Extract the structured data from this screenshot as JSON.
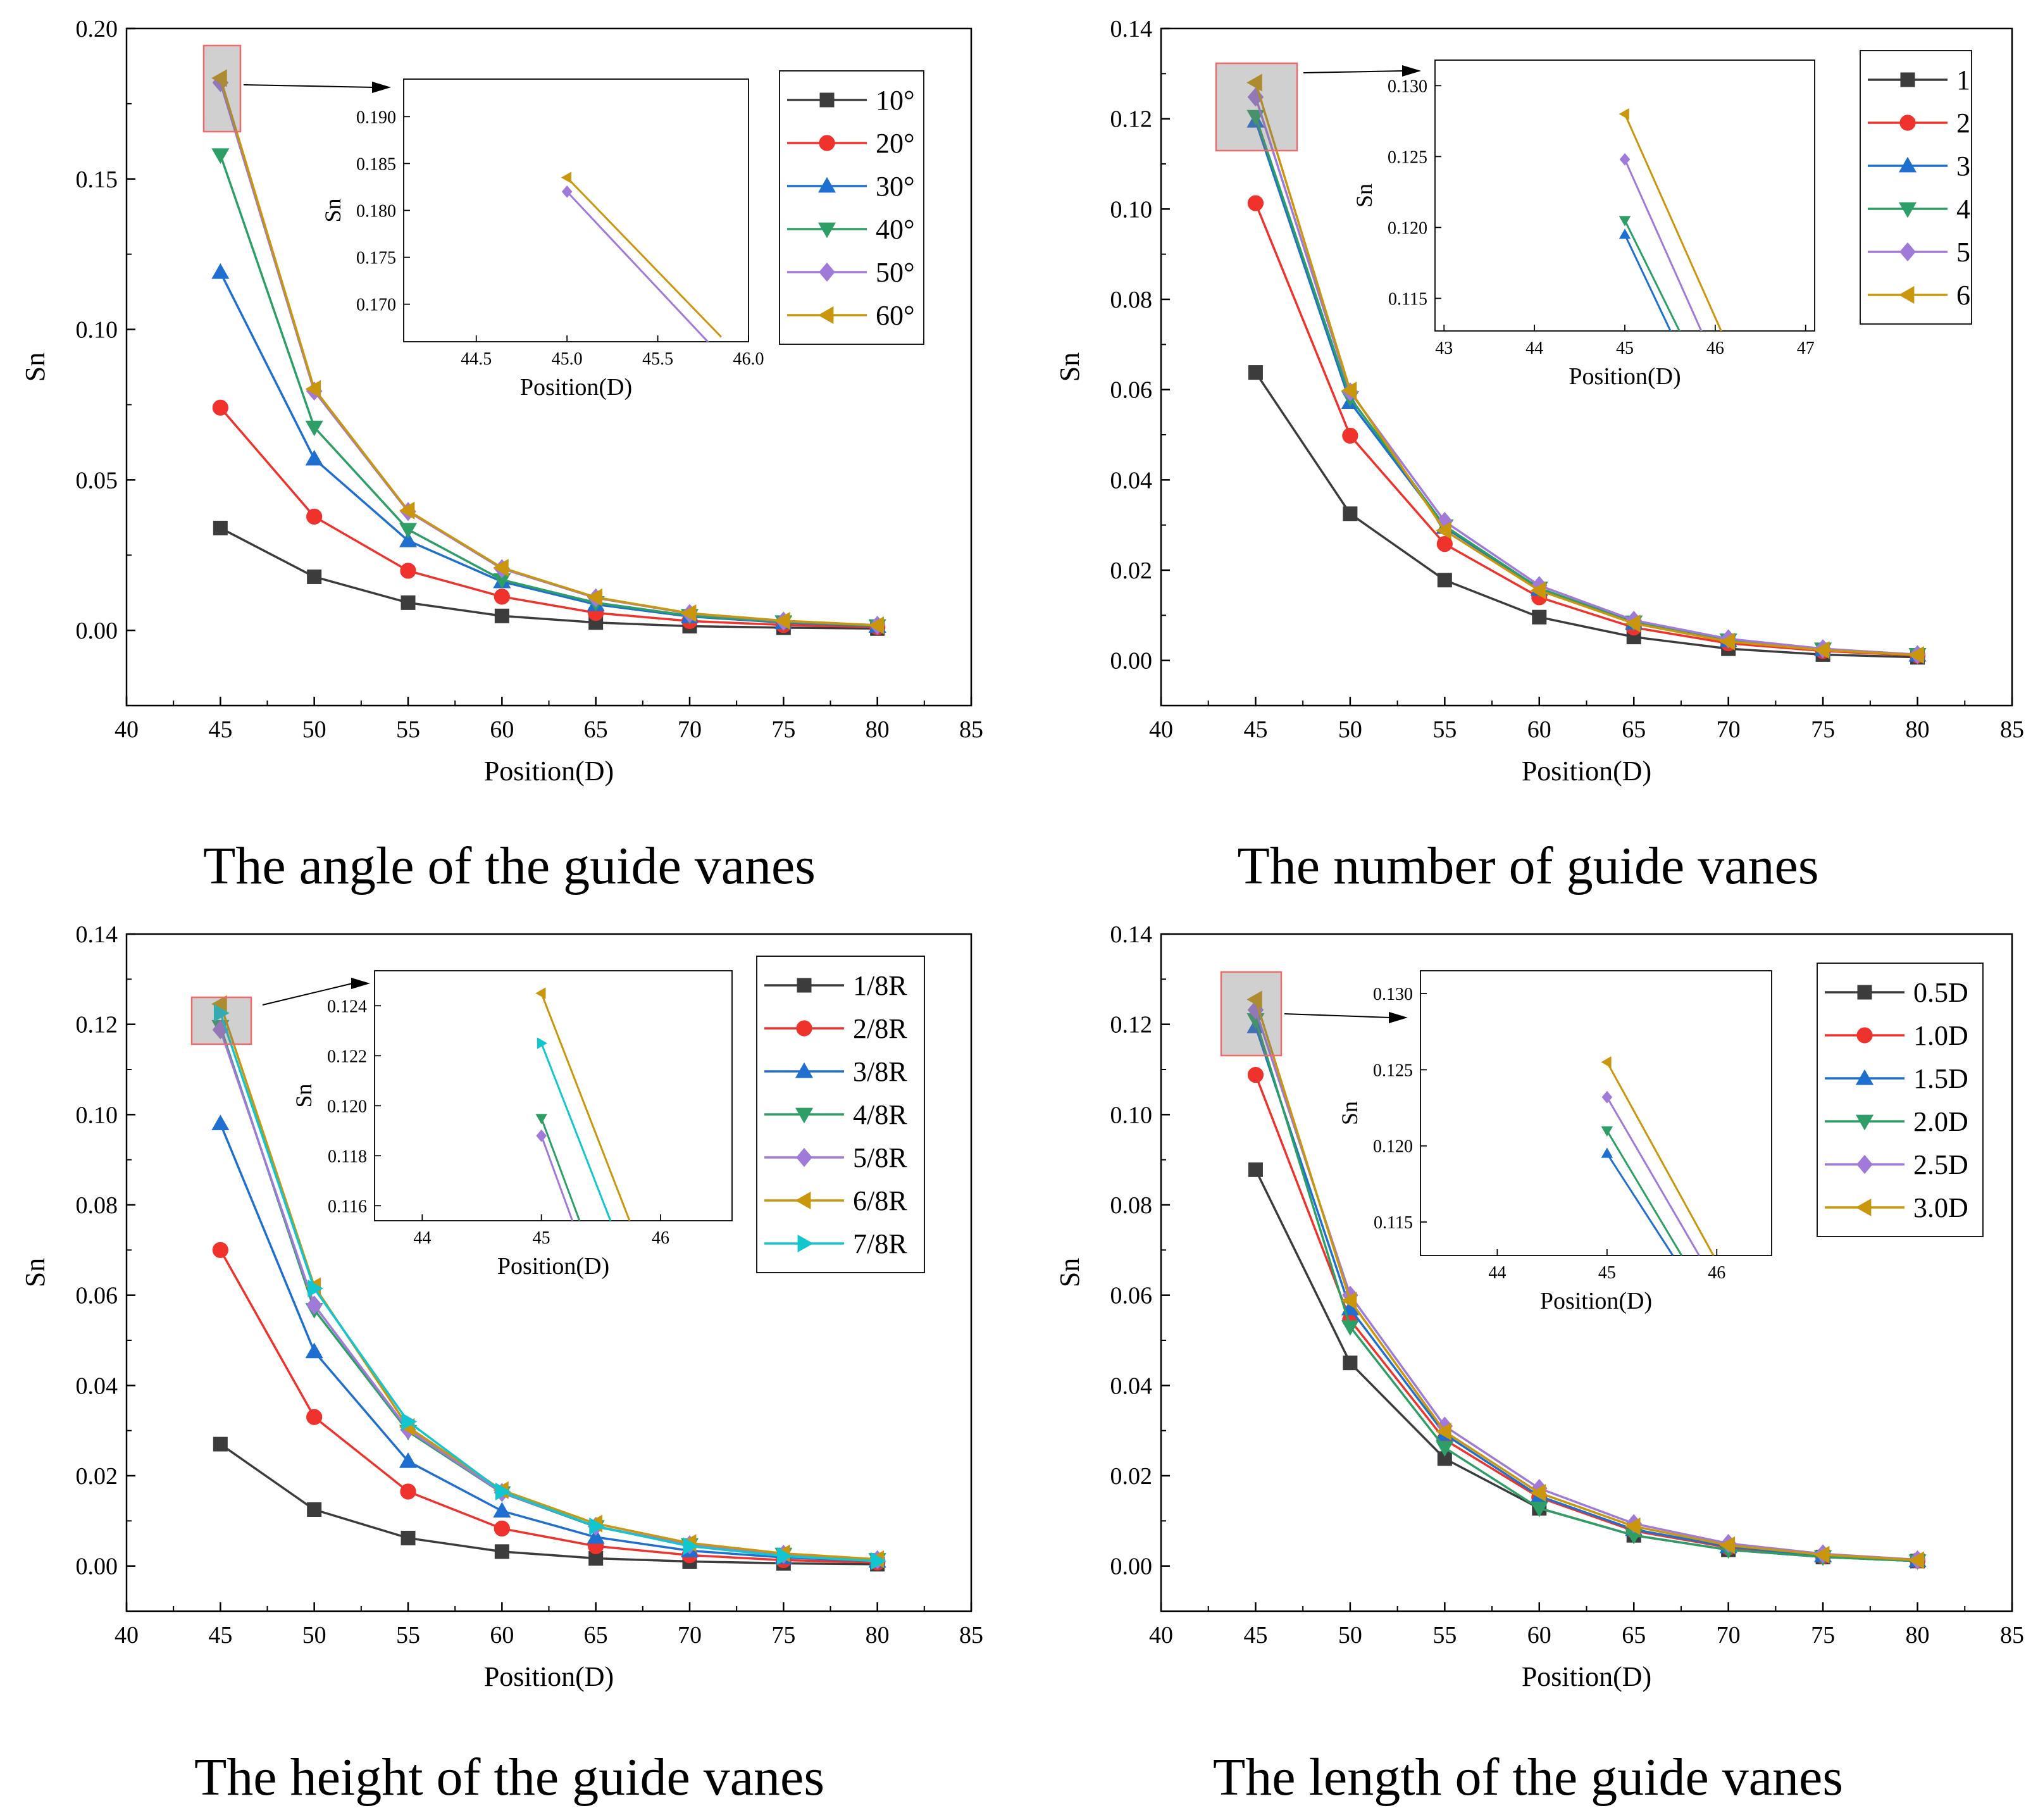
{
  "colors": {
    "black": "#3c3c3c",
    "red": "#f0322d",
    "blue": "#1f6fd1",
    "green": "#2e9e67",
    "purple": "#a07ad8",
    "gold": "#c9960c",
    "cyan": "#12c6cf"
  },
  "chart_data": [
    {
      "type": "line",
      "caption": "The angle of the guide vanes",
      "xlabel": "Position(D)",
      "ylabel": "Sn",
      "xlim": [
        40,
        85
      ],
      "ylim": [
        -0.025,
        0.2
      ],
      "xticks": [
        "40",
        "45",
        "50",
        "55",
        "60",
        "65",
        "70",
        "75",
        "80",
        "85"
      ],
      "yticks": [
        "0.00",
        "0.05",
        "0.10",
        "0.15",
        "0.20"
      ],
      "x": [
        45,
        50,
        55,
        60,
        65,
        70,
        75,
        80
      ],
      "series": [
        {
          "name": "10°",
          "color": "black",
          "marker": "square",
          "values": [
            0.034,
            0.0178,
            0.0092,
            0.0048,
            0.0026,
            0.0014,
            0.0009,
            0.0006
          ]
        },
        {
          "name": "20°",
          "color": "red",
          "marker": "circle",
          "values": [
            0.074,
            0.0378,
            0.0198,
            0.0112,
            0.0058,
            0.0031,
            0.0018,
            0.0011
          ]
        },
        {
          "name": "30°",
          "color": "blue",
          "marker": "triangle-up",
          "values": [
            0.119,
            0.057,
            0.0298,
            0.0162,
            0.0086,
            0.0046,
            0.0026,
            0.0014
          ]
        },
        {
          "name": "40°",
          "color": "green",
          "marker": "triangle-down",
          "values": [
            0.158,
            0.0675,
            0.0335,
            0.0168,
            0.0092,
            0.0049,
            0.0028,
            0.0015
          ]
        },
        {
          "name": "50°",
          "color": "purple",
          "marker": "diamond",
          "values": [
            0.182,
            0.0795,
            0.0395,
            0.0205,
            0.0108,
            0.0056,
            0.0031,
            0.0017
          ]
        },
        {
          "name": "60°",
          "color": "gold",
          "marker": "triangle-left",
          "values": [
            0.1835,
            0.0802,
            0.0398,
            0.0208,
            0.011,
            0.0057,
            0.0032,
            0.0017
          ]
        }
      ],
      "inset": {
        "xlabel": "Position(D)",
        "ylabel": "Sn",
        "xlim": [
          44.1,
          46.0
        ],
        "ylim": [
          0.166,
          0.194
        ],
        "xticks": [
          "44.5",
          "45.0",
          "45.5",
          "46.0"
        ],
        "yticks": [
          "0.170",
          "0.175",
          "0.180",
          "0.185",
          "0.190"
        ],
        "series": [
          {
            "series": "50°",
            "x": [
              45.0,
              45.8
            ],
            "y": [
              0.182,
              0.1655
            ]
          },
          {
            "series": "60°",
            "x": [
              45.0,
              45.85
            ],
            "y": [
              0.1835,
              0.1665
            ]
          }
        ]
      }
    },
    {
      "type": "line",
      "caption": "The number of guide vanes",
      "xlabel": "Position(D)",
      "ylabel": "Sn",
      "xlim": [
        40,
        85
      ],
      "ylim": [
        -0.01,
        0.14
      ],
      "xticks": [
        "40",
        "45",
        "50",
        "55",
        "60",
        "65",
        "70",
        "75",
        "80",
        "85"
      ],
      "yticks": [
        "0.00",
        "0.02",
        "0.04",
        "0.06",
        "0.08",
        "0.10",
        "0.12",
        "0.14"
      ],
      "x": [
        45,
        50,
        55,
        60,
        65,
        70,
        75,
        80
      ],
      "series": [
        {
          "name": "1",
          "color": "black",
          "marker": "square",
          "values": [
            0.0638,
            0.0325,
            0.0178,
            0.0096,
            0.0052,
            0.0026,
            0.0013,
            0.0007
          ]
        },
        {
          "name": "2",
          "color": "red",
          "marker": "circle",
          "values": [
            0.1013,
            0.0498,
            0.0258,
            0.014,
            0.0073,
            0.0038,
            0.0021,
            0.0011
          ]
        },
        {
          "name": "3",
          "color": "blue",
          "marker": "triangle-up",
          "values": [
            0.1195,
            0.0572,
            0.0295,
            0.0158,
            0.0083,
            0.0044,
            0.0024,
            0.0012
          ]
        },
        {
          "name": "4",
          "color": "green",
          "marker": "triangle-down",
          "values": [
            0.1205,
            0.0582,
            0.0298,
            0.016,
            0.0085,
            0.0045,
            0.0025,
            0.0013
          ]
        },
        {
          "name": "5",
          "color": "purple",
          "marker": "diamond",
          "values": [
            0.1248,
            0.0595,
            0.0308,
            0.0166,
            0.0089,
            0.0048,
            0.0026,
            0.0013
          ]
        },
        {
          "name": "6",
          "color": "gold",
          "marker": "triangle-left",
          "values": [
            0.128,
            0.0598,
            0.0288,
            0.0155,
            0.0082,
            0.0042,
            0.0023,
            0.0012
          ]
        }
      ],
      "inset": {
        "xlabel": "Position(D)",
        "ylabel": "Sn",
        "xlim": [
          42.9,
          47.1
        ],
        "ylim": [
          0.1127,
          0.1318
        ],
        "xticks": [
          "43",
          "44",
          "45",
          "46",
          "47"
        ],
        "yticks": [
          "0.115",
          "0.120",
          "0.125",
          "0.130"
        ],
        "series": [
          {
            "series": "3",
            "x": [
              45.0,
              45.52
            ],
            "y": [
              0.1195,
              0.1125
            ]
          },
          {
            "series": "4",
            "x": [
              45.0,
              45.62
            ],
            "y": [
              0.1205,
              0.1125
            ]
          },
          {
            "series": "5",
            "x": [
              45.0,
              45.86
            ],
            "y": [
              0.1248,
              0.1125
            ]
          },
          {
            "series": "6",
            "x": [
              45.0,
              46.08
            ],
            "y": [
              0.128,
              0.1125
            ]
          }
        ]
      }
    },
    {
      "type": "line",
      "caption": "The height of the guide vanes",
      "xlabel": "Position(D)",
      "ylabel": "Sn",
      "xlim": [
        40,
        85
      ],
      "ylim": [
        -0.01,
        0.14
      ],
      "xticks": [
        "40",
        "45",
        "50",
        "55",
        "60",
        "65",
        "70",
        "75",
        "80",
        "85"
      ],
      "yticks": [
        "0.00",
        "0.02",
        "0.04",
        "0.06",
        "0.08",
        "0.10",
        "0.12",
        "0.14"
      ],
      "x": [
        45,
        50,
        55,
        60,
        65,
        70,
        75,
        80
      ],
      "series": [
        {
          "name": "1/8R",
          "color": "black",
          "marker": "square",
          "values": [
            0.027,
            0.0125,
            0.0062,
            0.0032,
            0.0017,
            0.001,
            0.0006,
            0.0004
          ]
        },
        {
          "name": "2/8R",
          "color": "red",
          "marker": "circle",
          "values": [
            0.07,
            0.033,
            0.0165,
            0.0083,
            0.0044,
            0.0024,
            0.0013,
            0.0008
          ]
        },
        {
          "name": "3/8R",
          "color": "blue",
          "marker": "triangle-up",
          "values": [
            0.098,
            0.0475,
            0.0232,
            0.0122,
            0.0064,
            0.0034,
            0.0019,
            0.0011
          ]
        },
        {
          "name": "4/8R",
          "color": "green",
          "marker": "triangle-down",
          "values": [
            0.1195,
            0.0568,
            0.0298,
            0.0162,
            0.0087,
            0.0047,
            0.0026,
            0.0014
          ]
        },
        {
          "name": "5/8R",
          "color": "purple",
          "marker": "diamond",
          "values": [
            0.1188,
            0.0578,
            0.0302,
            0.0163,
            0.0088,
            0.0047,
            0.0026,
            0.0014
          ]
        },
        {
          "name": "6/8R",
          "color": "gold",
          "marker": "triangle-left",
          "values": [
            0.1245,
            0.062,
            0.0308,
            0.0168,
            0.0094,
            0.0051,
            0.0028,
            0.0015
          ]
        },
        {
          "name": "7/8R",
          "color": "cyan",
          "marker": "triangle-right",
          "values": [
            0.1225,
            0.0615,
            0.032,
            0.0165,
            0.0088,
            0.0044,
            0.0022,
            0.0011
          ]
        }
      ],
      "inset": {
        "xlabel": "Position(D)",
        "ylabel": "Sn",
        "xlim": [
          43.6,
          46.6
        ],
        "ylim": [
          0.1154,
          0.1254
        ],
        "xticks": [
          "44",
          "45",
          "46"
        ],
        "yticks": [
          "0.116",
          "0.118",
          "0.120",
          "0.122",
          "0.124"
        ],
        "series": [
          {
            "series": "4/8R",
            "x": [
              45.0,
              45.32
            ],
            "y": [
              0.1195,
              0.1154
            ]
          },
          {
            "series": "5/8R",
            "x": [
              45.0,
              45.26
            ],
            "y": [
              0.1188,
              0.1154
            ]
          },
          {
            "series": "6/8R",
            "x": [
              45.0,
              45.74
            ],
            "y": [
              0.1245,
              0.1154
            ]
          },
          {
            "series": "7/8R",
            "x": [
              45.0,
              45.58
            ],
            "y": [
              0.1225,
              0.1154
            ]
          }
        ]
      }
    },
    {
      "type": "line",
      "caption": "The length of the guide vanes",
      "xlabel": "Position(D)",
      "ylabel": "Sn",
      "xlim": [
        40,
        85
      ],
      "ylim": [
        -0.01,
        0.14
      ],
      "xticks": [
        "40",
        "45",
        "50",
        "55",
        "60",
        "65",
        "70",
        "75",
        "80",
        "85"
      ],
      "yticks": [
        "0.00",
        "0.02",
        "0.04",
        "0.06",
        "0.08",
        "0.10",
        "0.12",
        "0.14"
      ],
      "x": [
        45,
        50,
        55,
        60,
        65,
        70,
        75,
        80
      ],
      "series": [
        {
          "name": "0.5D",
          "color": "black",
          "marker": "square",
          "values": [
            0.0878,
            0.045,
            0.0238,
            0.0128,
            0.0068,
            0.0036,
            0.002,
            0.0011
          ]
        },
        {
          "name": "1.0D",
          "color": "red",
          "marker": "circle",
          "values": [
            0.1088,
            0.0545,
            0.028,
            0.0152,
            0.0078,
            0.0041,
            0.0022,
            0.0012
          ]
        },
        {
          "name": "1.5D",
          "color": "blue",
          "marker": "triangle-up",
          "values": [
            0.1195,
            0.057,
            0.0292,
            0.0155,
            0.0081,
            0.0043,
            0.0023,
            0.0012
          ]
        },
        {
          "name": "2.0D",
          "color": "green",
          "marker": "triangle-down",
          "values": [
            0.121,
            0.053,
            0.0262,
            0.0128,
            0.0068,
            0.0036,
            0.002,
            0.0011
          ]
        },
        {
          "name": "2.5D",
          "color": "purple",
          "marker": "diamond",
          "values": [
            0.1232,
            0.06,
            0.031,
            0.0172,
            0.0094,
            0.005,
            0.0027,
            0.0014
          ]
        },
        {
          "name": "3.0D",
          "color": "gold",
          "marker": "triangle-left",
          "values": [
            0.1255,
            0.0588,
            0.0298,
            0.0162,
            0.0088,
            0.0046,
            0.0025,
            0.0013
          ]
        }
      ],
      "inset": {
        "xlabel": "Position(D)",
        "ylabel": "Sn",
        "xlim": [
          43.3,
          46.5
        ],
        "ylim": [
          0.1128,
          0.1315
        ],
        "xticks": [
          "44",
          "45",
          "46"
        ],
        "yticks": [
          "0.115",
          "0.120",
          "0.125",
          "0.130"
        ],
        "series": [
          {
            "series": "1.5D",
            "x": [
              45.0,
              45.6
            ],
            "y": [
              0.1195,
              0.1128
            ]
          },
          {
            "series": "2.0D",
            "x": [
              45.0,
              45.68
            ],
            "y": [
              0.121,
              0.1128
            ]
          },
          {
            "series": "2.5D",
            "x": [
              45.0,
              45.84
            ],
            "y": [
              0.1232,
              0.1128
            ]
          },
          {
            "series": "3.0D",
            "x": [
              45.0,
              45.97
            ],
            "y": [
              0.1255,
              0.1128
            ]
          }
        ]
      }
    }
  ]
}
